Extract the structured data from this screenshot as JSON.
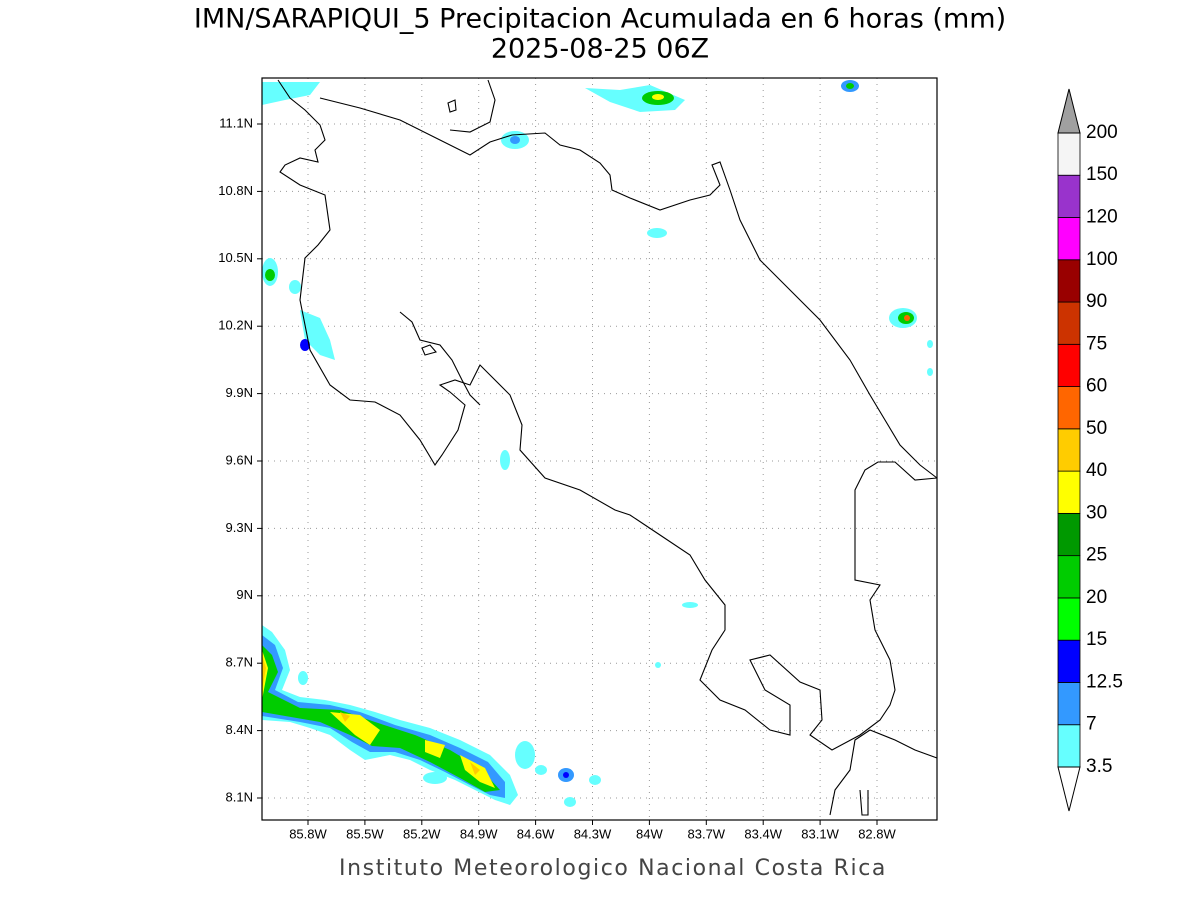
{
  "title": "IMN/SARAPIQUI_5 Precipitacion Acumulada en 6 horas (mm)",
  "subtitle": "2025-08-25 06Z",
  "map": {
    "lon_labels": [
      "85.8W",
      "85.5W",
      "85.2W",
      "84.9W",
      "84.6W",
      "84.3W",
      "84W",
      "83.7W",
      "83.4W",
      "83.1W",
      "82.8W"
    ],
    "lat_labels": [
      "11.1N",
      "10.8N",
      "10.5N",
      "10.2N",
      "9.9N",
      "9.6N",
      "9.3N",
      "9N",
      "8.7N",
      "8.4N",
      "8.1N"
    ]
  },
  "colorbar": {
    "levels": [
      3.5,
      7,
      12.5,
      15,
      20,
      25,
      30,
      40,
      50,
      60,
      75,
      90,
      100,
      120,
      150,
      200
    ],
    "colors": [
      "#66ffff",
      "#3399ff",
      "#0000ff",
      "#00ff00",
      "#00cc00",
      "#009900",
      "#ffff00",
      "#ffcc00",
      "#ff6600",
      "#ff0000",
      "#cc3300",
      "#990000",
      "#ff00ff",
      "#9933cc",
      "#f5f5f5"
    ],
    "under_color": "#ffffff",
    "over_color": "#a0a0a0"
  },
  "footer": "Instituto Meteorologico Nacional Costa Rica"
}
